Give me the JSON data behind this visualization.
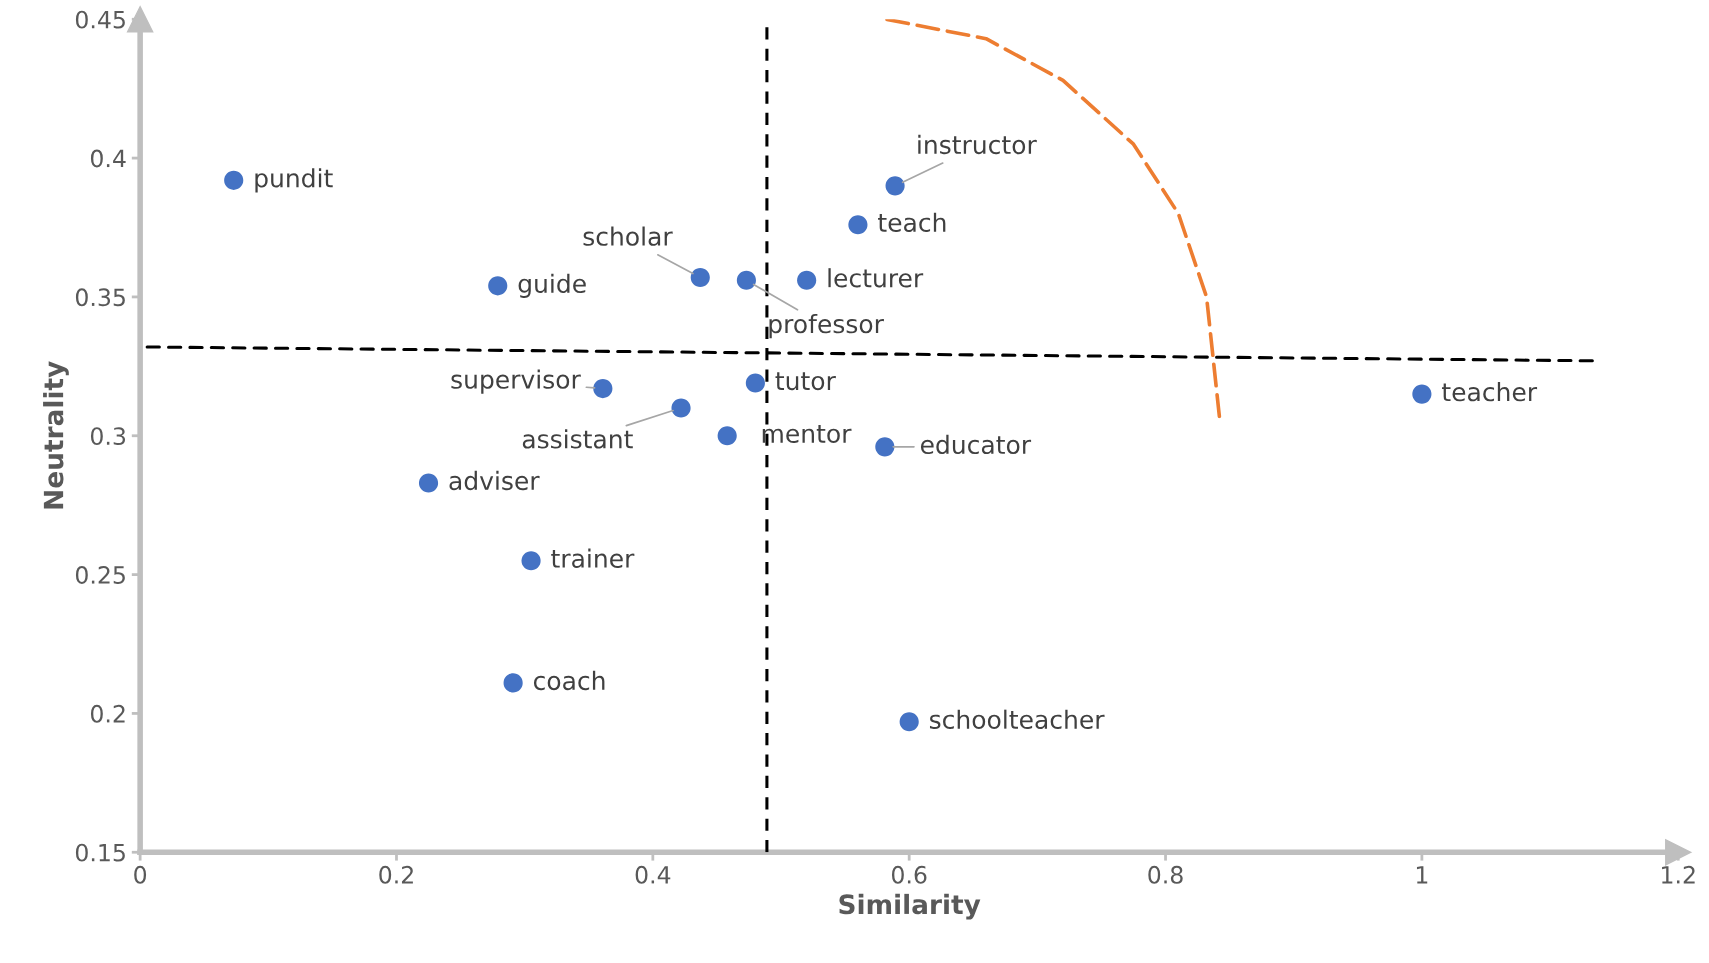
{
  "chart_data": {
    "type": "scatter",
    "xlabel": "Similarity",
    "ylabel": "Neutrality",
    "xlim": [
      0,
      1.2
    ],
    "ylim": [
      0.15,
      0.45
    ],
    "xticks": [
      0,
      0.2,
      0.4,
      0.6,
      0.8,
      1,
      1.2
    ],
    "yticks": [
      0.15,
      0.2,
      0.25,
      0.3,
      0.35,
      0.4,
      0.45
    ],
    "grid": false,
    "legend": false,
    "series": [
      {
        "marker": "circle",
        "color": "#4472c4",
        "x": [
          0.073,
          0.279,
          0.437,
          0.473,
          0.52,
          0.56,
          0.589,
          0.361,
          0.422,
          0.48,
          0.458,
          0.581,
          1.0,
          0.225,
          0.305,
          0.291,
          0.6
        ],
        "values": [
          0.392,
          0.354,
          0.357,
          0.356,
          0.356,
          0.376,
          0.39,
          0.317,
          0.31,
          0.319,
          0.3,
          0.296,
          0.315,
          0.283,
          0.255,
          0.211,
          0.197
        ]
      },
      {
        "type": "line",
        "marker": "none",
        "color": "#000000",
        "line_style": "dashed",
        "x": [
          0,
          1.133
        ],
        "values": [
          0.332,
          0.327
        ]
      },
      {
        "type": "line",
        "marker": "none",
        "color": "#ed7d31",
        "line_style": "dashed",
        "x": [
          0.582,
          0.66,
          0.72,
          0.775,
          0.81,
          0.832,
          0.842
        ],
        "values": [
          0.45,
          0.443,
          0.428,
          0.405,
          0.38,
          0.35,
          0.307
        ]
      }
    ],
    "ref_lines": [
      {
        "axis": "x",
        "value": 0.489,
        "color": "#000000",
        "line_style": "dashed"
      }
    ],
    "annotations": [
      {
        "text": "pundit",
        "x": 0.073,
        "y": 0.392
      },
      {
        "text": "guide",
        "x": 0.279,
        "y": 0.354
      },
      {
        "text": "scholar",
        "x": 0.437,
        "y": 0.357
      },
      {
        "text": "professor",
        "x": 0.473,
        "y": 0.356
      },
      {
        "text": "lecturer",
        "x": 0.52,
        "y": 0.356
      },
      {
        "text": "teach",
        "x": 0.56,
        "y": 0.376
      },
      {
        "text": "instructor",
        "x": 0.589,
        "y": 0.39
      },
      {
        "text": "supervisor",
        "x": 0.361,
        "y": 0.317
      },
      {
        "text": "assistant",
        "x": 0.422,
        "y": 0.31
      },
      {
        "text": "tutor",
        "x": 0.48,
        "y": 0.319
      },
      {
        "text": "mentor",
        "x": 0.458,
        "y": 0.3
      },
      {
        "text": "educator",
        "x": 0.581,
        "y": 0.296
      },
      {
        "text": "teacher",
        "x": 1.0,
        "y": 0.315
      },
      {
        "text": "adviser",
        "x": 0.225,
        "y": 0.283
      },
      {
        "text": "trainer",
        "x": 0.305,
        "y": 0.255
      },
      {
        "text": "coach",
        "x": 0.291,
        "y": 0.211
      },
      {
        "text": "schoolteacher",
        "x": 0.6,
        "y": 0.197
      }
    ]
  }
}
